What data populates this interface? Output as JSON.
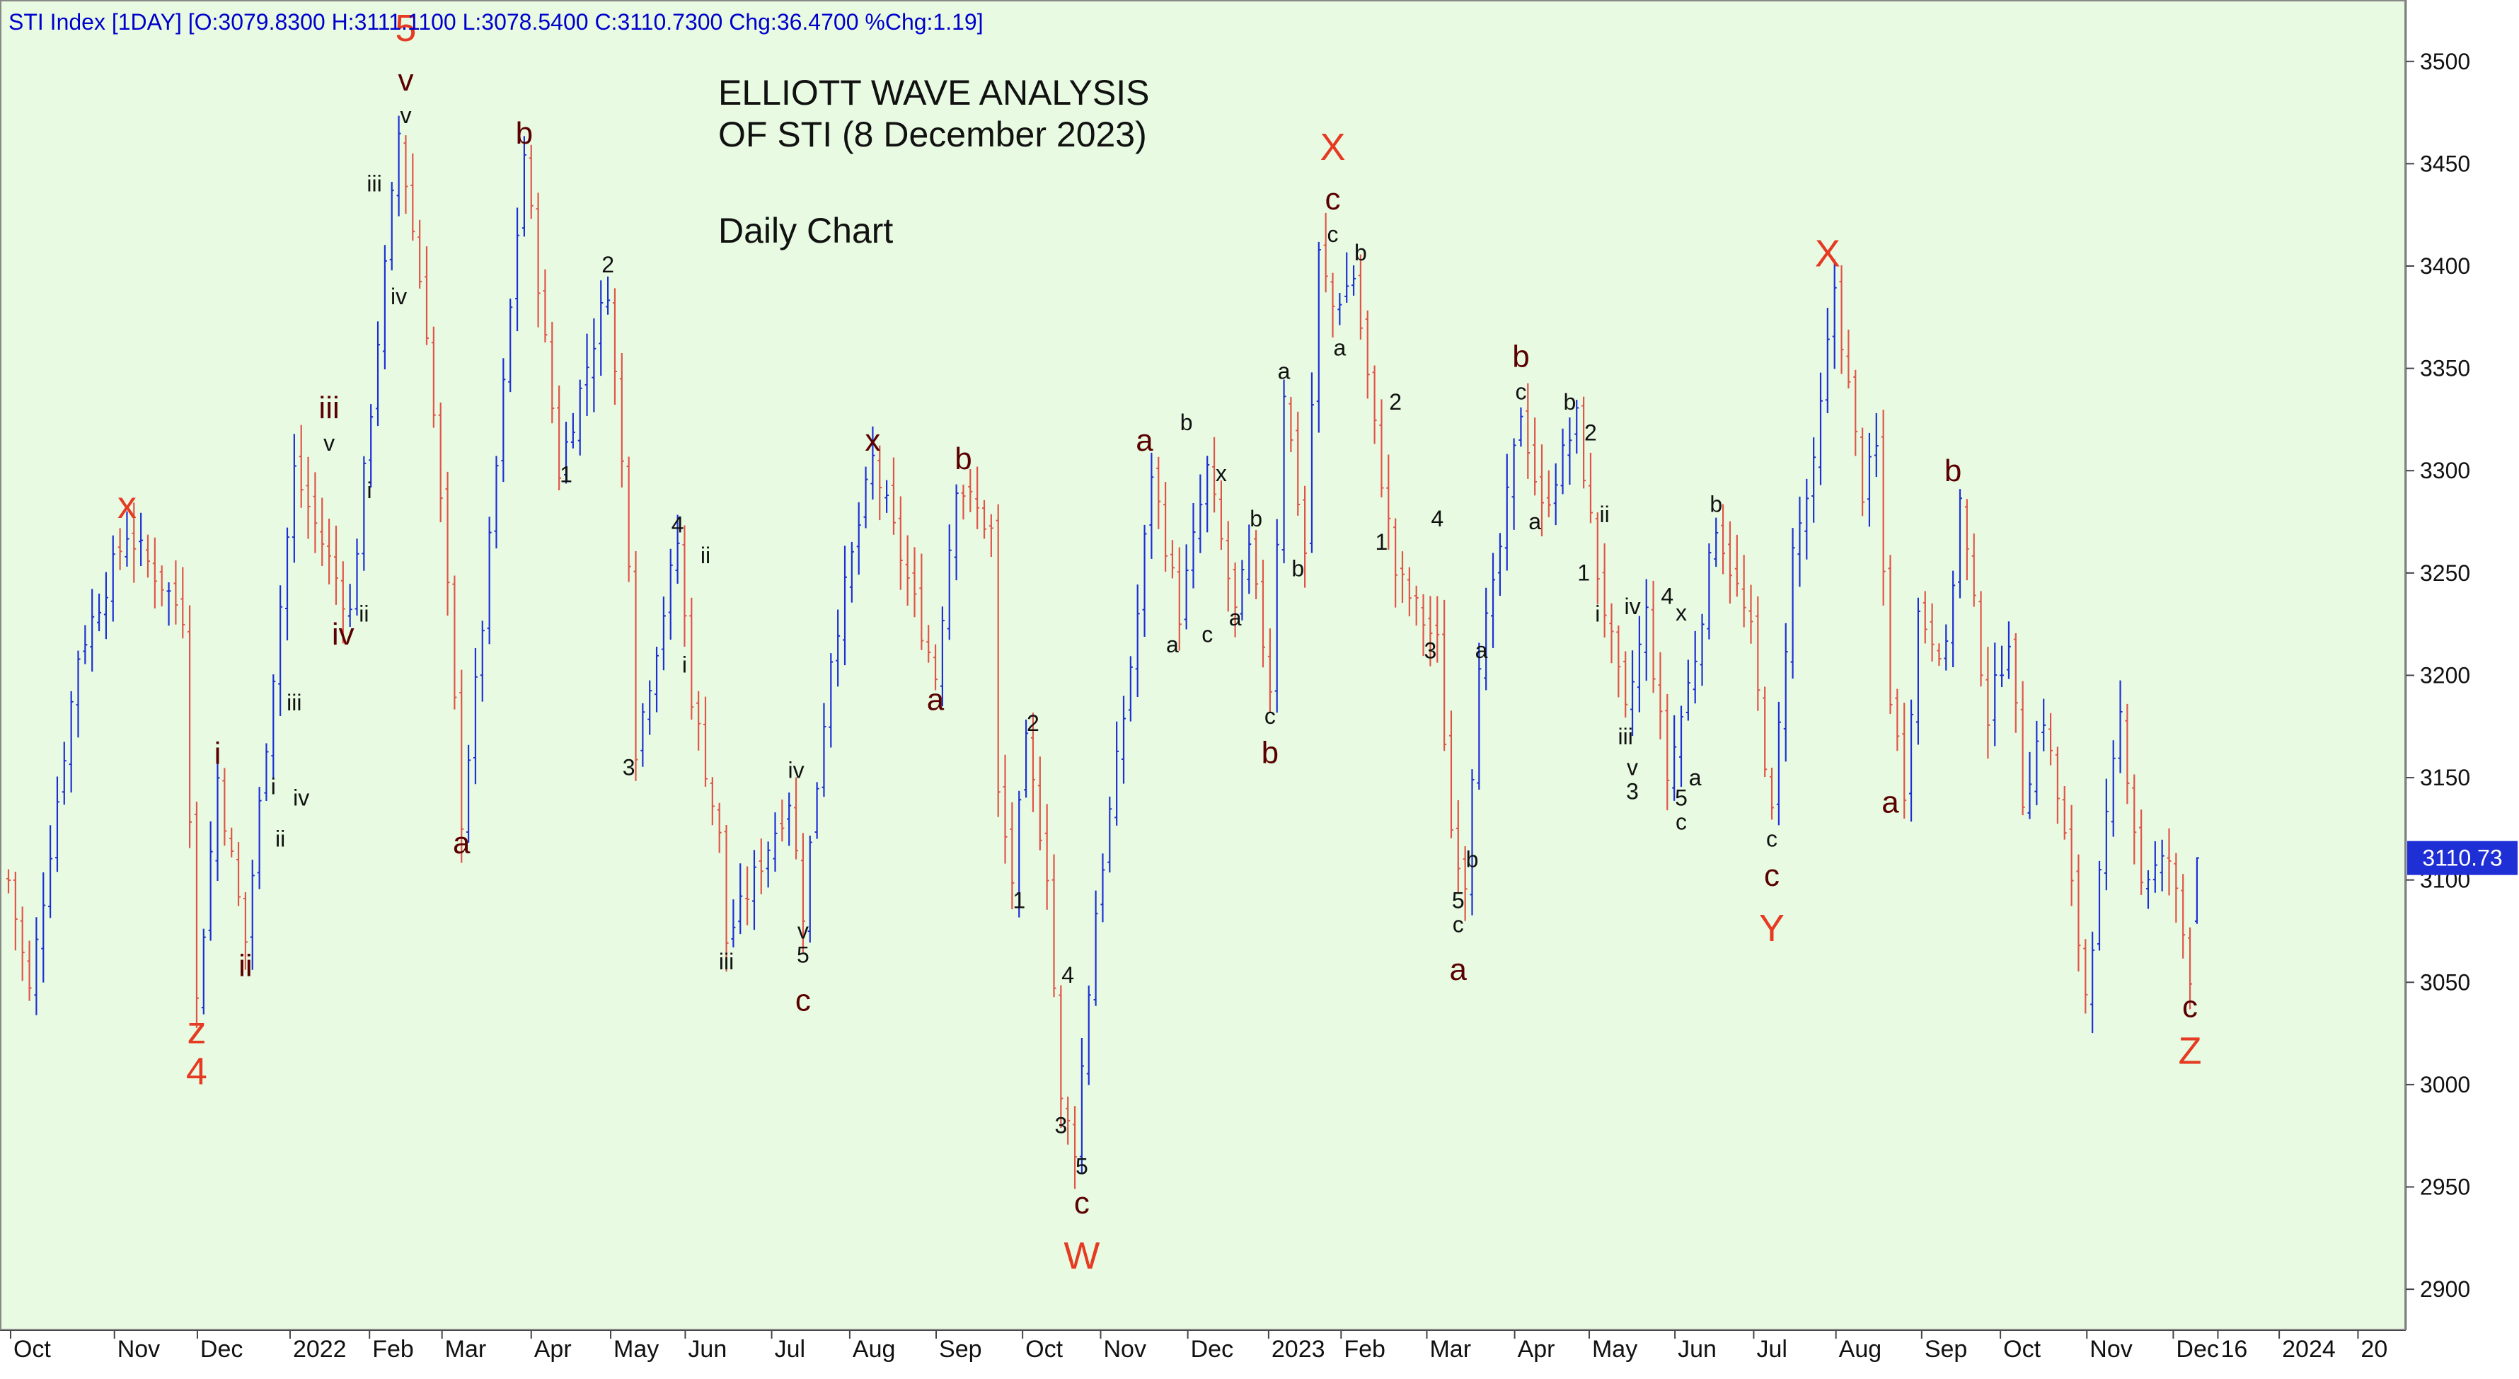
{
  "header": {
    "text": "STI Index [1DAY] [O:3079.8300 H:3111.1100 L:3078.5400 C:3110.7300 Chg:36.4700 %Chg:1.19]"
  },
  "title": {
    "line1": "ELLIOTT WAVE ANALYSIS",
    "line2": "OF STI (8 December 2023)",
    "subtitle": "Daily Chart"
  },
  "last_price": "3110.73",
  "colors": {
    "background": "#e8fbe2",
    "up_bar": "#1f2fd6",
    "down_bar": "#e2544a",
    "major_label": "#e63a22",
    "minor_label": "#5a0000",
    "small_label": "#111111",
    "header_text": "#0000cc",
    "price_tag_bg": "#1f2fd6"
  },
  "chart_data": {
    "type": "ohlc",
    "title": "ELLIOTT WAVE ANALYSIS OF STI (8 December 2023)",
    "subtitle": "Daily Chart",
    "ylim": [
      2880,
      3530
    ],
    "y_ticks": [
      2900,
      2950,
      3000,
      3050,
      3100,
      3150,
      3200,
      3250,
      3300,
      3350,
      3400,
      3450,
      3500
    ],
    "x_tick_labels": [
      "Oct",
      "Nov",
      "Dec",
      "2022",
      "Feb",
      "Mar",
      "Apr",
      "May",
      "Jun",
      "Jul",
      "Aug",
      "Sep",
      "Oct",
      "Nov",
      "Dec",
      "2023",
      "Feb",
      "Mar",
      "Apr",
      "May",
      "Jun",
      "Jul",
      "Aug",
      "Sep",
      "Oct",
      "Nov",
      "Dec",
      "16",
      "2024",
      "20"
    ],
    "x_tick_index": [
      0.3,
      15.2,
      27.1,
      40.4,
      51.8,
      62.2,
      75,
      86.4,
      97.1,
      109.5,
      120.7,
      133.1,
      145.5,
      156.7,
      169.2,
      180.8,
      191.2,
      203.5,
      216.1,
      226.8,
      239.1,
      250.4,
      262.2,
      274.5,
      285.8,
      298.2,
      310.6,
      317,
      325.8,
      337.1
    ],
    "anchors": [
      [
        0,
        3100
      ],
      [
        3,
        3045
      ],
      [
        10,
        3210
      ],
      [
        17,
        3270
      ],
      [
        25,
        3230
      ],
      [
        27,
        3040
      ],
      [
        30,
        3150
      ],
      [
        34,
        3070
      ],
      [
        41,
        3300
      ],
      [
        49,
        3230
      ],
      [
        56,
        3465
      ],
      [
        60,
        3370
      ],
      [
        63,
        3240
      ],
      [
        65,
        3130
      ],
      [
        68,
        3225
      ],
      [
        74,
        3455
      ],
      [
        79,
        3300
      ],
      [
        86,
        3390
      ],
      [
        89,
        3260
      ],
      [
        90,
        3165
      ],
      [
        96,
        3265
      ],
      [
        98,
        3190
      ],
      [
        102,
        3120
      ],
      [
        103,
        3070
      ],
      [
        112,
        3140
      ],
      [
        114,
        3085
      ],
      [
        118,
        3210
      ],
      [
        124,
        3305
      ],
      [
        133,
        3200
      ],
      [
        136,
        3295
      ],
      [
        141,
        3270
      ],
      [
        142,
        3140
      ],
      [
        144,
        3100
      ],
      [
        146,
        3165
      ],
      [
        149,
        3105
      ],
      [
        151,
        2990
      ],
      [
        153,
        2970
      ],
      [
        156,
        3085
      ],
      [
        160,
        3180
      ],
      [
        162,
        3230
      ],
      [
        164,
        3300
      ],
      [
        168,
        3230
      ],
      [
        172,
        3300
      ],
      [
        176,
        3230
      ],
      [
        178,
        3260
      ],
      [
        181,
        3195
      ],
      [
        183,
        3340
      ],
      [
        186,
        3260
      ],
      [
        188,
        3405
      ],
      [
        190,
        3380
      ],
      [
        193,
        3395
      ],
      [
        196,
        3320
      ],
      [
        199,
        3250
      ],
      [
        205,
        3215
      ],
      [
        207,
        3125
      ],
      [
        209,
        3100
      ],
      [
        211,
        3210
      ],
      [
        213,
        3240
      ],
      [
        217,
        3330
      ],
      [
        220,
        3280
      ],
      [
        225,
        3325
      ],
      [
        228,
        3250
      ],
      [
        232,
        3180
      ],
      [
        235,
        3230
      ],
      [
        238,
        3150
      ],
      [
        242,
        3210
      ],
      [
        245,
        3275
      ],
      [
        250,
        3220
      ],
      [
        253,
        3130
      ],
      [
        256,
        3260
      ],
      [
        259,
        3300
      ],
      [
        262,
        3390
      ],
      [
        264,
        3340
      ],
      [
        266,
        3290
      ],
      [
        268,
        3310
      ],
      [
        270,
        3190
      ],
      [
        272,
        3145
      ],
      [
        274,
        3230
      ],
      [
        278,
        3210
      ],
      [
        280,
        3285
      ],
      [
        284,
        3180
      ],
      [
        287,
        3220
      ],
      [
        289,
        3140
      ],
      [
        292,
        3180
      ],
      [
        295,
        3120
      ],
      [
        298,
        3045
      ],
      [
        300,
        3100
      ],
      [
        303,
        3180
      ],
      [
        306,
        3100
      ],
      [
        310,
        3110
      ],
      [
        313,
        3055
      ],
      [
        314,
        3111
      ]
    ],
    "last_bar": {
      "open": 3079.83,
      "high": 3111.11,
      "low": 3078.54,
      "close": 3110.73
    },
    "wave_labels": [
      {
        "t": "x",
        "i": 17,
        "v": 3272,
        "pos": "above",
        "level": "major"
      },
      {
        "t": "z",
        "i": 27,
        "v": 3040,
        "pos": "below",
        "level": "major"
      },
      {
        "t": "4",
        "i": 27,
        "v": 3040,
        "pos": "below2",
        "level": "major"
      },
      {
        "t": "i",
        "i": 30,
        "v": 3152,
        "pos": "above",
        "level": "minor"
      },
      {
        "t": "ii",
        "i": 34,
        "v": 3070,
        "pos": "below",
        "level": "minor"
      },
      {
        "t": "i",
        "i": 38,
        "v": 3137,
        "pos": "above",
        "level": "small"
      },
      {
        "t": "ii",
        "i": 39,
        "v": 3130,
        "pos": "below",
        "level": "small"
      },
      {
        "t": "iii",
        "i": 41,
        "v": 3178,
        "pos": "above",
        "level": "small"
      },
      {
        "t": "iv",
        "i": 42,
        "v": 3150,
        "pos": "below",
        "level": "small"
      },
      {
        "t": "iii",
        "i": 46,
        "v": 3305,
        "pos": "above2",
        "level": "minor"
      },
      {
        "t": "v",
        "i": 46,
        "v": 3305,
        "pos": "above",
        "level": "small"
      },
      {
        "t": "i",
        "i": 50,
        "v": 3290,
        "pos": "right",
        "level": "small"
      },
      {
        "t": "iv",
        "i": 48,
        "v": 3232,
        "pos": "below",
        "level": "minor"
      },
      {
        "t": "ii",
        "i": 51,
        "v": 3240,
        "pos": "below",
        "level": "small"
      },
      {
        "t": "5",
        "i": 57,
        "v": 3465,
        "pos": "above3",
        "level": "major"
      },
      {
        "t": "v",
        "i": 57,
        "v": 3465,
        "pos": "above2",
        "level": "minor"
      },
      {
        "t": "v",
        "i": 57,
        "v": 3465,
        "pos": "above",
        "level": "small"
      },
      {
        "t": "iii",
        "i": 55,
        "v": 3440,
        "pos": "left",
        "level": "small"
      },
      {
        "t": "iv",
        "i": 56,
        "v": 3395,
        "pos": "below",
        "level": "small"
      },
      {
        "t": "a",
        "i": 65,
        "v": 3130,
        "pos": "below",
        "level": "minor"
      },
      {
        "t": "b",
        "i": 74,
        "v": 3455,
        "pos": "above",
        "level": "minor"
      },
      {
        "t": "1",
        "i": 80,
        "v": 3308,
        "pos": "below",
        "level": "small"
      },
      {
        "t": "2",
        "i": 86,
        "v": 3392,
        "pos": "above",
        "level": "small"
      },
      {
        "t": "3",
        "i": 89,
        "v": 3165,
        "pos": "below",
        "level": "small"
      },
      {
        "t": "4",
        "i": 96,
        "v": 3265,
        "pos": "above",
        "level": "small"
      },
      {
        "t": "i",
        "i": 97,
        "v": 3215,
        "pos": "below",
        "level": "small"
      },
      {
        "t": "ii",
        "i": 100,
        "v": 3250,
        "pos": "above",
        "level": "small"
      },
      {
        "t": "iii",
        "i": 103,
        "v": 3070,
        "pos": "below",
        "level": "small"
      },
      {
        "t": "iv",
        "i": 113,
        "v": 3145,
        "pos": "above",
        "level": "small"
      },
      {
        "t": "v",
        "i": 114,
        "v": 3085,
        "pos": "below",
        "level": "small"
      },
      {
        "t": "5",
        "i": 114,
        "v": 3085,
        "pos": "below2",
        "level": "small"
      },
      {
        "t": "c",
        "i": 114,
        "v": 3085,
        "pos": "below3",
        "level": "minor"
      },
      {
        "t": "x",
        "i": 124,
        "v": 3305,
        "pos": "above",
        "level": "minor"
      },
      {
        "t": "a",
        "i": 133,
        "v": 3200,
        "pos": "below",
        "level": "minor"
      },
      {
        "t": "b",
        "i": 137,
        "v": 3296,
        "pos": "above",
        "level": "minor"
      },
      {
        "t": "1",
        "i": 145,
        "v": 3100,
        "pos": "below",
        "level": "small"
      },
      {
        "t": "2",
        "i": 147,
        "v": 3168,
        "pos": "above",
        "level": "small"
      },
      {
        "t": "3",
        "i": 151,
        "v": 2990,
        "pos": "below",
        "level": "small"
      },
      {
        "t": "4",
        "i": 152,
        "v": 3045,
        "pos": "above",
        "level": "small"
      },
      {
        "t": "5",
        "i": 154,
        "v": 2970,
        "pos": "below",
        "level": "small"
      },
      {
        "t": "c",
        "i": 154,
        "v": 2970,
        "pos": "below2",
        "level": "minor"
      },
      {
        "t": "W",
        "i": 154,
        "v": 2970,
        "pos": "below3",
        "level": "major"
      },
      {
        "t": "a",
        "i": 163,
        "v": 3305,
        "pos": "above",
        "level": "minor"
      },
      {
        "t": "a",
        "i": 167,
        "v": 3225,
        "pos": "below",
        "level": "small"
      },
      {
        "t": "b",
        "i": 169,
        "v": 3315,
        "pos": "above",
        "level": "small"
      },
      {
        "t": "c",
        "i": 172,
        "v": 3230,
        "pos": "below",
        "level": "small"
      },
      {
        "t": "x",
        "i": 174,
        "v": 3290,
        "pos": "above",
        "level": "small"
      },
      {
        "t": "a",
        "i": 176,
        "v": 3238,
        "pos": "below",
        "level": "small"
      },
      {
        "t": "b",
        "i": 179,
        "v": 3268,
        "pos": "above",
        "level": "small"
      },
      {
        "t": "c",
        "i": 181,
        "v": 3190,
        "pos": "below",
        "level": "small"
      },
      {
        "t": "b",
        "i": 181,
        "v": 3190,
        "pos": "below2",
        "level": "minor"
      },
      {
        "t": "b",
        "i": 185,
        "v": 3262,
        "pos": "below",
        "level": "small"
      },
      {
        "t": "a",
        "i": 183,
        "v": 3340,
        "pos": "above",
        "level": "small"
      },
      {
        "t": "a",
        "i": 191,
        "v": 3370,
        "pos": "below",
        "level": "small"
      },
      {
        "t": "c",
        "i": 190,
        "v": 3407,
        "pos": "above",
        "level": "small"
      },
      {
        "t": "c",
        "i": 190,
        "v": 3407,
        "pos": "above2",
        "level": "minor"
      },
      {
        "t": "X",
        "i": 190,
        "v": 3407,
        "pos": "above3",
        "level": "major"
      },
      {
        "t": "b",
        "i": 194,
        "v": 3398,
        "pos": "above",
        "level": "small"
      },
      {
        "t": "2",
        "i": 199,
        "v": 3325,
        "pos": "above",
        "level": "small"
      },
      {
        "t": "1",
        "i": 197,
        "v": 3275,
        "pos": "below",
        "level": "small"
      },
      {
        "t": "4",
        "i": 205,
        "v": 3268,
        "pos": "above",
        "level": "small"
      },
      {
        "t": "3",
        "i": 204,
        "v": 3222,
        "pos": "below",
        "level": "small"
      },
      {
        "t": "a",
        "i": 209,
        "v": 3212,
        "pos": "right",
        "level": "small"
      },
      {
        "t": "b",
        "i": 210,
        "v": 3120,
        "pos": "below",
        "level": "small"
      },
      {
        "t": "5",
        "i": 208,
        "v": 3100,
        "pos": "below",
        "level": "small"
      },
      {
        "t": "c",
        "i": 208,
        "v": 3100,
        "pos": "below2",
        "level": "small"
      },
      {
        "t": "a",
        "i": 208,
        "v": 3100,
        "pos": "below3",
        "level": "minor"
      },
      {
        "t": "b",
        "i": 217,
        "v": 3330,
        "pos": "above2",
        "level": "minor"
      },
      {
        "t": "c",
        "i": 217,
        "v": 3330,
        "pos": "above",
        "level": "small"
      },
      {
        "t": "a",
        "i": 219,
        "v": 3285,
        "pos": "below",
        "level": "small"
      },
      {
        "t": "b",
        "i": 224,
        "v": 3325,
        "pos": "above",
        "level": "small"
      },
      {
        "t": "2",
        "i": 227,
        "v": 3310,
        "pos": "above",
        "level": "small"
      },
      {
        "t": "1",
        "i": 226,
        "v": 3260,
        "pos": "below",
        "level": "small"
      },
      {
        "t": "ii",
        "i": 229,
        "v": 3270,
        "pos": "above",
        "level": "small"
      },
      {
        "t": "i",
        "i": 228,
        "v": 3240,
        "pos": "below",
        "level": "small"
      },
      {
        "t": "iv",
        "i": 233,
        "v": 3225,
        "pos": "above",
        "level": "small"
      },
      {
        "t": "iii",
        "i": 232,
        "v": 3180,
        "pos": "below",
        "level": "small"
      },
      {
        "t": "v",
        "i": 233,
        "v": 3165,
        "pos": "below",
        "level": "small"
      },
      {
        "t": "3",
        "i": 233,
        "v": 3165,
        "pos": "below2",
        "level": "small"
      },
      {
        "t": "4",
        "i": 238,
        "v": 3230,
        "pos": "above",
        "level": "small"
      },
      {
        "t": "x",
        "i": 240,
        "v": 3222,
        "pos": "above",
        "level": "small"
      },
      {
        "t": "5",
        "i": 240,
        "v": 3150,
        "pos": "below",
        "level": "small"
      },
      {
        "t": "c",
        "i": 240,
        "v": 3150,
        "pos": "below2",
        "level": "small"
      },
      {
        "t": "a",
        "i": 242,
        "v": 3160,
        "pos": "below",
        "level": "small"
      },
      {
        "t": "b",
        "i": 245,
        "v": 3275,
        "pos": "above",
        "level": "small"
      },
      {
        "t": "c",
        "i": 253,
        "v": 3130,
        "pos": "below",
        "level": "small"
      },
      {
        "t": "c",
        "i": 253,
        "v": 3130,
        "pos": "below2",
        "level": "minor"
      },
      {
        "t": "Y",
        "i": 253,
        "v": 3130,
        "pos": "below3",
        "level": "major"
      },
      {
        "t": "X",
        "i": 261,
        "v": 3395,
        "pos": "above",
        "level": "major"
      },
      {
        "t": "a",
        "i": 270,
        "v": 3150,
        "pos": "below",
        "level": "minor"
      },
      {
        "t": "b",
        "i": 279,
        "v": 3290,
        "pos": "above",
        "level": "minor"
      },
      {
        "t": "c",
        "i": 313,
        "v": 3050,
        "pos": "below",
        "level": "minor"
      },
      {
        "t": "Z",
        "i": 313,
        "v": 3050,
        "pos": "below2",
        "level": "major"
      }
    ]
  }
}
